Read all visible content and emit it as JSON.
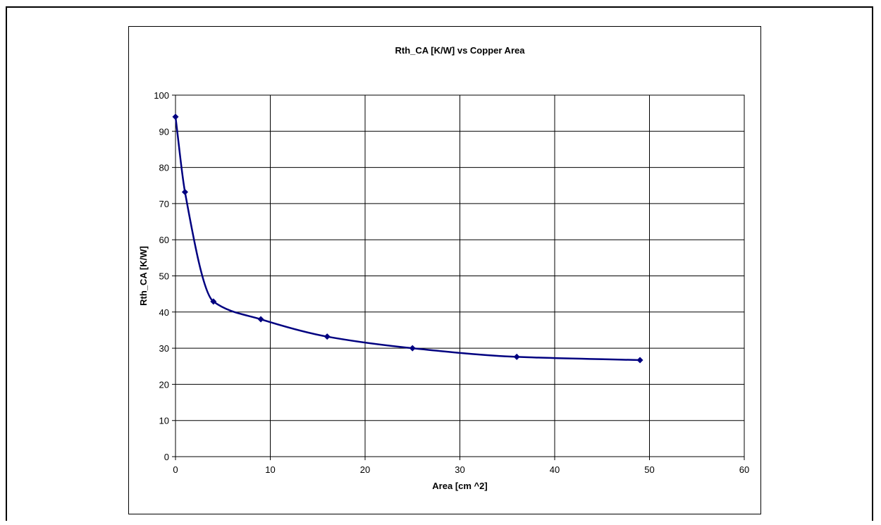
{
  "chart_data": {
    "type": "scatter",
    "title": "Rth_CA [K/W] vs Copper Area",
    "xlabel": "Area [cm ^2]",
    "ylabel": "Rth_CA [K/W]",
    "xlim": [
      0,
      60
    ],
    "ylim": [
      0,
      100
    ],
    "xticks": [
      "0",
      "10",
      "20",
      "30",
      "40",
      "50",
      "60"
    ],
    "yticks": [
      "0",
      "10",
      "20",
      "30",
      "40",
      "50",
      "60",
      "70",
      "80",
      "90",
      "100"
    ],
    "grid": true,
    "legend": "none",
    "line_style": "smoothed",
    "series": [
      {
        "color": "#000080",
        "x": [
          0,
          1,
          4,
          9,
          16,
          25,
          36,
          49
        ],
        "y": [
          94,
          73.2,
          42.9,
          38,
          33.2,
          30,
          27.6,
          26.7
        ]
      }
    ]
  }
}
